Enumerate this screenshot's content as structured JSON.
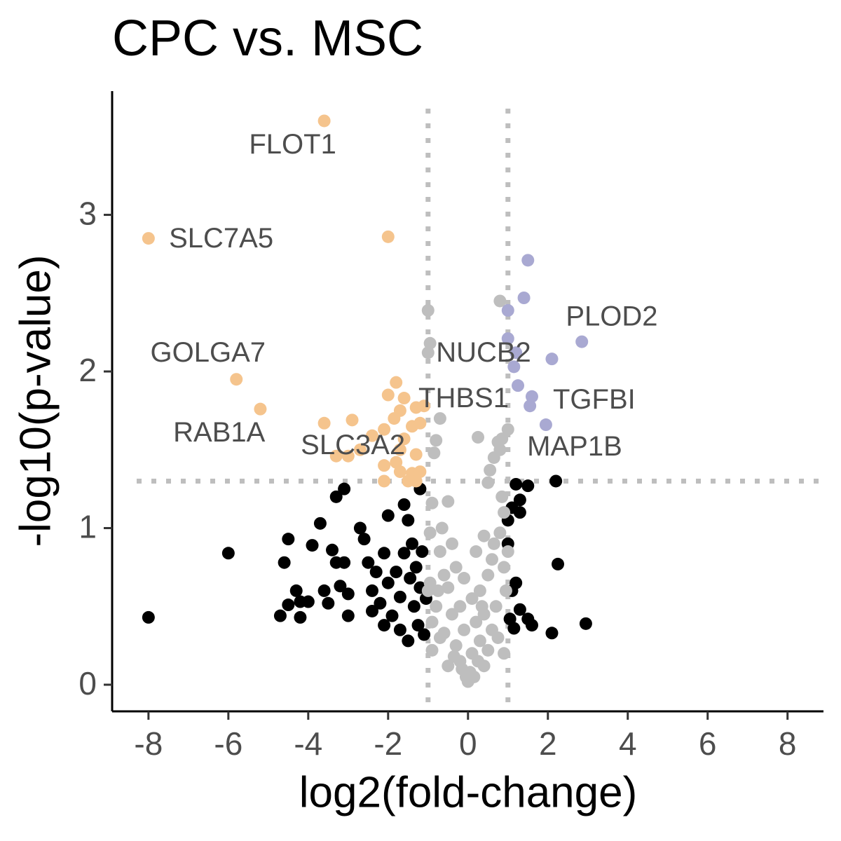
{
  "chart_data": {
    "type": "scatter",
    "title": "CPC vs. MSC",
    "x_label": "log2(fold-change)",
    "y_label": "-log10(p-value)",
    "xlim": [
      -8.91,
      8.9
    ],
    "ylim": [
      -0.17,
      3.79
    ],
    "xticks": [
      -8,
      -6,
      -4,
      -2,
      0,
      2,
      4,
      6,
      8
    ],
    "yticks": [
      0,
      1,
      2,
      3
    ],
    "thresholds": {
      "x": [
        -1,
        1
      ],
      "y": 1.3,
      "color": "#bebebe"
    },
    "series": [
      {
        "color": "#f5c48d",
        "x": [
          -3.6,
          -2,
          -8,
          -5.8,
          -5.2,
          -3.6,
          -2.9,
          -1.8,
          -2,
          -1.6,
          -1.7,
          -1.3,
          -1.1,
          -1.4,
          -1.2,
          -2.1,
          -2.4,
          -1.85,
          -1.6,
          -1.7,
          -2.7,
          -3.0,
          -3.3,
          -1.3,
          -2.1,
          -1.7,
          -1.4,
          -1.2,
          -2.1,
          -1.5,
          -1.8,
          -1.3
        ],
        "y": [
          3.6,
          2.86,
          2.85,
          1.95,
          1.76,
          1.67,
          1.69,
          1.93,
          1.85,
          1.83,
          1.75,
          1.77,
          1.78,
          1.65,
          1.67,
          1.63,
          1.59,
          1.7,
          1.57,
          1.5,
          1.5,
          1.46,
          1.46,
          1.47,
          1.4,
          1.36,
          1.35,
          1.36,
          1.3,
          1.3,
          1.42,
          1.3
        ]
      },
      {
        "color": "#a9a9d2",
        "x": [
          1.5,
          1.4,
          1.0,
          1.0,
          2.85,
          2.1,
          1.2,
          1.15,
          1.25,
          1.6,
          1.55,
          1.95
        ],
        "y": [
          2.71,
          2.47,
          2.39,
          2.21,
          2.19,
          2.08,
          2.12,
          2.03,
          1.91,
          1.84,
          1.78,
          1.66
        ]
      },
      {
        "color": "#bebebe",
        "x": [
          -1,
          -1,
          -0.95,
          -0.7,
          -0.8,
          -0.85,
          0.8,
          0.25,
          1.0,
          0.75,
          0.85,
          0.65,
          0.8,
          0.55,
          0.5,
          0.85,
          -0.5,
          -0.9,
          0.9,
          -0.65,
          -0.95,
          0.4,
          0.8,
          -0.4,
          0.2,
          -0.7,
          0.6,
          0.9,
          -0.3,
          -0.1,
          0.5,
          -0.6,
          0.3,
          -0.5,
          0.1,
          -0.2,
          0.7,
          -0.8,
          0.4,
          -0.4,
          0.2,
          -0.1,
          0.6,
          -0.6,
          0.3,
          -0.3,
          0.9,
          -0.9,
          0.1,
          -0.2,
          0.4,
          -0.5,
          0.05,
          -0.05,
          0.15,
          0,
          -0.15,
          0.25,
          -0.35,
          0.5,
          -0.7,
          0.75,
          -0.9,
          0.95,
          -0.95,
          1.0,
          -1,
          0.65,
          -0.75,
          0.35
        ],
        "y": [
          2.39,
          2.12,
          2.18,
          1.7,
          1.56,
          1.48,
          2.45,
          1.58,
          1.63,
          1.55,
          1.57,
          1.45,
          1.5,
          1.37,
          1.29,
          1.2,
          1.17,
          1.16,
          1.1,
          1.0,
          0.97,
          0.95,
          0.97,
          0.9,
          0.85,
          0.85,
          0.8,
          0.75,
          0.75,
          0.68,
          0.7,
          0.7,
          0.6,
          0.62,
          0.55,
          0.5,
          0.5,
          0.5,
          0.45,
          0.45,
          0.4,
          0.35,
          0.35,
          0.33,
          0.28,
          0.25,
          0.2,
          0.22,
          0.2,
          0.15,
          0.12,
          0.12,
          0.08,
          0.05,
          0.05,
          0.02,
          0.1,
          0.15,
          0.18,
          0.22,
          0.3,
          0.3,
          0.4,
          0.6,
          0.65,
          0.85,
          0.6,
          0.9,
          0.6,
          0.5
        ]
      },
      {
        "color": "#000000",
        "x": [
          -8,
          -6,
          -4.5,
          -4.6,
          -4.3,
          -4.2,
          -4.5,
          -4.7,
          -4.2,
          -4,
          -3.9,
          -3.7,
          -3.6,
          -3.4,
          -3.3,
          -3.5,
          -3.1,
          -3.2,
          -3.0,
          -3.0,
          -3.3,
          -3.1,
          -2.7,
          -2.6,
          -2.5,
          -2.3,
          -2.4,
          -2.4,
          -2.2,
          -2.1,
          -2.0,
          -2.0,
          -1.9,
          -1.8,
          -1.7,
          -1.6,
          -1.6,
          -1.5,
          -1.45,
          -1.4,
          -1.35,
          -1.3,
          -1.25,
          -1.2,
          -1.2,
          -1.15,
          -1.1,
          -1.05,
          -1.5,
          -1.7,
          -2.1,
          2.2,
          1.5,
          1.2,
          1.3,
          1.1,
          1.3,
          1.0,
          2.25,
          1.2,
          1.1,
          1.3,
          1.5,
          1.05,
          1.6,
          2.1,
          2.95,
          1.15,
          1.0
        ],
        "y": [
          0.43,
          0.84,
          0.93,
          0.78,
          0.6,
          0.53,
          0.51,
          0.44,
          0.43,
          0.53,
          0.89,
          1.03,
          0.6,
          0.86,
          0.78,
          0.52,
          0.78,
          0.63,
          0.44,
          0.58,
          1.2,
          1.25,
          1.0,
          0.93,
          0.78,
          0.72,
          0.6,
          0.47,
          0.52,
          0.84,
          0.65,
          1.08,
          0.44,
          0.72,
          0.56,
          0.84,
          1.15,
          1.05,
          0.68,
          0.9,
          0.5,
          0.75,
          0.38,
          0.62,
          1.25,
          0.85,
          0.32,
          0.55,
          0.28,
          0.35,
          0.38,
          1.3,
          1.27,
          1.28,
          1.18,
          1.13,
          1.1,
          1.05,
          0.77,
          0.65,
          0.6,
          0.48,
          0.42,
          0.42,
          0.38,
          0.33,
          0.39,
          0.36,
          0.9
        ]
      }
    ],
    "annotations": [
      {
        "text": "FLOT1",
        "x": -4.39,
        "y": 3.44
      },
      {
        "text": "SLC7A5",
        "x": -6.18,
        "y": 2.84
      },
      {
        "text": "GOLGA7",
        "x": -6.51,
        "y": 2.11
      },
      {
        "text": "RAB1A",
        "x": -6.23,
        "y": 1.6
      },
      {
        "text": "SLC3A2",
        "x": -2.88,
        "y": 1.52
      },
      {
        "text": "THBS1",
        "x": -0.11,
        "y": 1.82
      },
      {
        "text": "NUCB2",
        "x": 0.39,
        "y": 2.11
      },
      {
        "text": "PLOD2",
        "x": 3.6,
        "y": 2.34
      },
      {
        "text": "TGFBI",
        "x": 3.16,
        "y": 1.81
      },
      {
        "text": "MAP1B",
        "x": 2.67,
        "y": 1.51
      }
    ]
  }
}
